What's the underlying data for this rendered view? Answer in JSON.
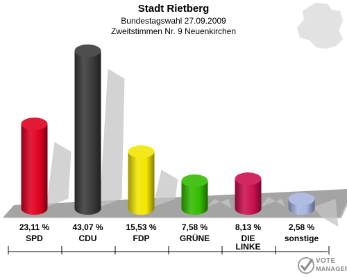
{
  "colors": {
    "SPD": "#e00020",
    "CDU": "#3a3a3a",
    "FDP": "#f2e600",
    "GRÜNE": "#33bb00",
    "DIE LINKE": "#cc1050",
    "sonstige": "#a8b4e0"
  },
  "chart_data": {
    "type": "bar",
    "title": "Stadt Rietberg",
    "subtitle": [
      "Bundestagswahl 27.09.2009",
      "Zweitstimmen Nr. 9 Neuenkirchen"
    ],
    "categories": [
      "SPD",
      "CDU",
      "FDP",
      "GRÜNE",
      "DIE LINKE",
      "sonstige"
    ],
    "category_label_lines": [
      [
        "SPD"
      ],
      [
        "CDU"
      ],
      [
        "FDP"
      ],
      [
        "GRÜNE"
      ],
      [
        "DIE",
        "LINKE"
      ],
      [
        "sonstige"
      ]
    ],
    "values": [
      23.11,
      43.07,
      15.53,
      7.58,
      8.13,
      2.58
    ],
    "value_labels": [
      "23,11 %",
      "43,07 %",
      "15,53 %",
      "7,58 %",
      "8,13 %",
      "2,58 %"
    ],
    "unit": "%",
    "ylim": [
      0,
      43.07
    ],
    "legend": "none",
    "grid": false
  },
  "logo": {
    "line1": "VOTE",
    "line2": "MANAGER"
  }
}
